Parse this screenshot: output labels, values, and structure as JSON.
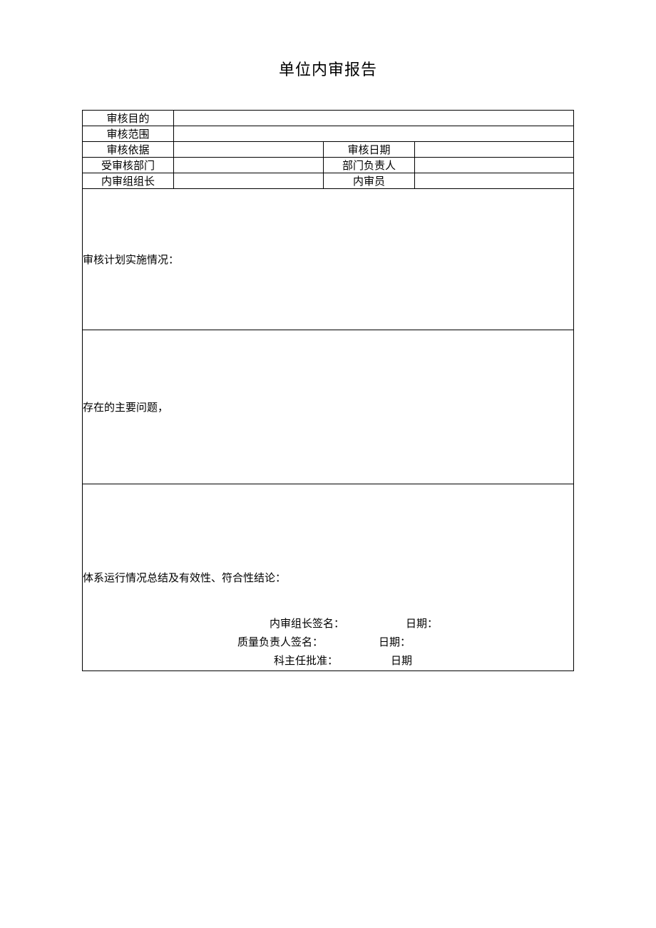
{
  "title": "单位内审报告",
  "rows": {
    "r1": {
      "label": "审核目的"
    },
    "r2": {
      "label": "审核范围"
    },
    "r3": {
      "label1": "审核依据",
      "label2": "审核日期"
    },
    "r4": {
      "label1": "受审核部门",
      "label2": "部门负责人"
    },
    "r5": {
      "label1": "内审组组长",
      "label2": "内审员"
    }
  },
  "sections": {
    "s1": "审核计划实施情况：",
    "s2": "存在的主要问题，",
    "s3": "体系运行情况总结及有效性、符合性结论："
  },
  "signatures": {
    "line1_label": "内审组长签名：",
    "line1_date": "日期：",
    "line2_label": "质量负责人签名：",
    "line2_date": "日期：",
    "line3_label": "科主任批准：",
    "line3_date": "日期"
  }
}
